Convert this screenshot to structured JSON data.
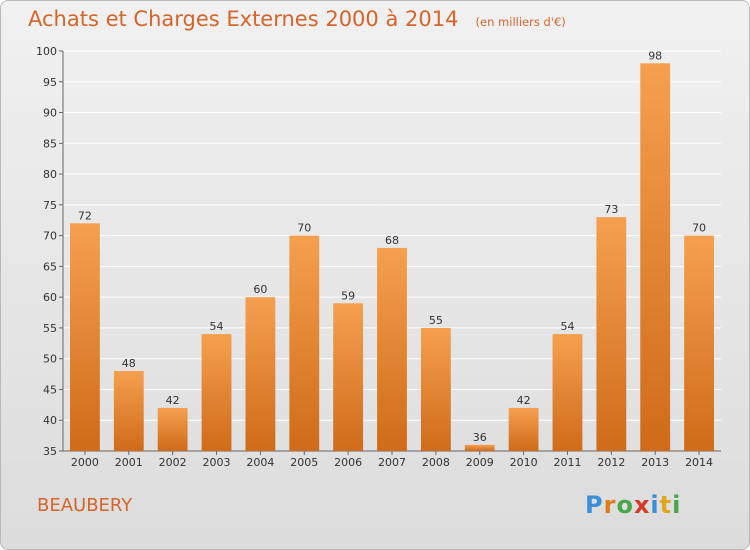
{
  "chart_data": {
    "type": "bar",
    "title": "Achats et Charges Externes 2000 à 2014",
    "subtitle": "(en milliers d'€)",
    "categories": [
      "2000",
      "2001",
      "2002",
      "2003",
      "2004",
      "2005",
      "2006",
      "2007",
      "2008",
      "2009",
      "2010",
      "2011",
      "2012",
      "2013",
      "2014"
    ],
    "values": [
      72,
      48,
      42,
      54,
      60,
      70,
      59,
      68,
      55,
      36,
      42,
      54,
      73,
      98,
      70
    ],
    "xlabel": "",
    "ylabel": "",
    "ylim": [
      35,
      100
    ],
    "yticks": [
      35,
      40,
      45,
      50,
      55,
      60,
      65,
      70,
      75,
      80,
      85,
      90,
      95,
      100
    ],
    "grid": true,
    "bar_color_top": "#f5a04f",
    "bar_color_bottom": "#cf6b19"
  },
  "commune": "BEAUBERY",
  "logo": {
    "letters": [
      "P",
      "r",
      "o",
      "x",
      "i",
      "t",
      "i"
    ],
    "colors": [
      "#3a8fd6",
      "#e07b1c",
      "#4aa64a",
      "#d43a2a",
      "#3a8fd6",
      "#e0a61c",
      "#4aa64a"
    ]
  }
}
